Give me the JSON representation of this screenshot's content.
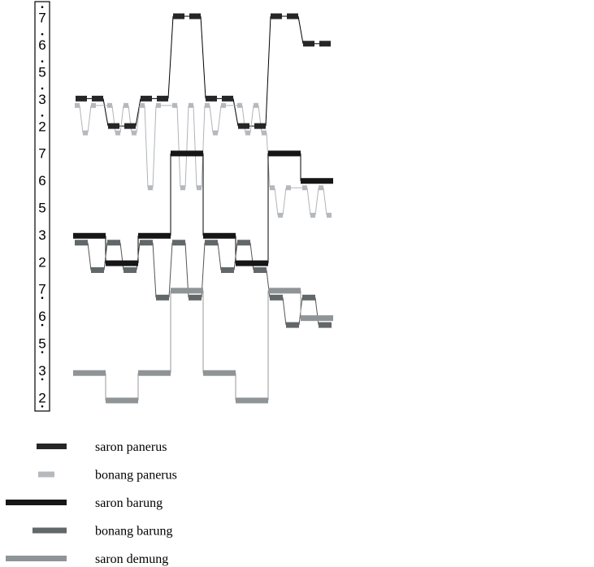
{
  "chart_data": {
    "type": "line",
    "title": "",
    "xlabel": "",
    "ylabel": "",
    "y_ticks": [
      {
        "label": "7",
        "octave": "high"
      },
      {
        "label": "6",
        "octave": "high"
      },
      {
        "label": "5",
        "octave": "high"
      },
      {
        "label": "3",
        "octave": "high"
      },
      {
        "label": "2",
        "octave": "high"
      },
      {
        "label": "7",
        "octave": "mid"
      },
      {
        "label": "6",
        "octave": "mid"
      },
      {
        "label": "5",
        "octave": "mid"
      },
      {
        "label": "3",
        "octave": "mid"
      },
      {
        "label": "2",
        "octave": "mid"
      },
      {
        "label": "7",
        "octave": "low"
      },
      {
        "label": "6",
        "octave": "low"
      },
      {
        "label": "5",
        "octave": "low"
      },
      {
        "label": "3",
        "octave": "low"
      },
      {
        "label": "2",
        "octave": "low"
      }
    ],
    "ylim": [
      0,
      14
    ],
    "xlim": [
      0,
      32
    ],
    "series": [
      {
        "name": "saron panerus",
        "color": "#262626",
        "notes": [
          [
            0,
            1,
            11
          ],
          [
            1,
            2,
            11
          ],
          [
            2,
            3,
            10
          ],
          [
            3,
            4,
            10
          ],
          [
            4,
            5,
            11
          ],
          [
            5,
            6,
            11
          ],
          [
            6,
            7,
            14
          ],
          [
            7,
            8,
            14
          ],
          [
            8,
            9,
            11
          ],
          [
            9,
            10,
            11
          ],
          [
            10,
            11,
            10
          ],
          [
            11,
            12,
            10
          ],
          [
            12,
            13,
            14
          ],
          [
            13,
            14,
            14
          ],
          [
            14,
            15,
            13
          ],
          [
            15,
            16,
            13
          ]
        ]
      },
      {
        "name": "bonang panerus",
        "color": "#b5b9be",
        "notes": [
          [
            0,
            0.5,
            10.75
          ],
          [
            0.5,
            1,
            9.75
          ],
          [
            1,
            1.5,
            10.75
          ],
          [
            2,
            2.5,
            10.75
          ],
          [
            2.5,
            3,
            9.75
          ],
          [
            3,
            3.5,
            10.75
          ],
          [
            3.5,
            4,
            9.75
          ],
          [
            4,
            4.5,
            10.75
          ],
          [
            4.5,
            5,
            7.75
          ],
          [
            5,
            5.5,
            10.75
          ],
          [
            6,
            6.5,
            10.75
          ],
          [
            6.5,
            7,
            7.75
          ],
          [
            7,
            7.5,
            10.75
          ],
          [
            7.5,
            8,
            7.75
          ],
          [
            8,
            8.5,
            10.75
          ],
          [
            8.5,
            9,
            9.75
          ],
          [
            9,
            9.5,
            10.75
          ],
          [
            10,
            10.5,
            10.75
          ],
          [
            10.5,
            11,
            9.75
          ],
          [
            11,
            11.5,
            10.75
          ],
          [
            11.5,
            12,
            9.75
          ],
          [
            12,
            12.5,
            7.75
          ],
          [
            12.5,
            13,
            6.75
          ],
          [
            13,
            13.5,
            7.75
          ],
          [
            14,
            14.5,
            7.75
          ],
          [
            14.5,
            15,
            6.75
          ],
          [
            15,
            15.5,
            7.75
          ],
          [
            15.5,
            16,
            6.75
          ]
        ]
      },
      {
        "name": "saron barung",
        "color": "#161616",
        "notes": [
          [
            0,
            1,
            6
          ],
          [
            1,
            2,
            6
          ],
          [
            2,
            3,
            5
          ],
          [
            3,
            4,
            5
          ],
          [
            4,
            5,
            6
          ],
          [
            5,
            6,
            6
          ],
          [
            6,
            7,
            9
          ],
          [
            7,
            8,
            9
          ],
          [
            8,
            9,
            6
          ],
          [
            9,
            10,
            6
          ],
          [
            10,
            11,
            5
          ],
          [
            11,
            12,
            5
          ],
          [
            12,
            13,
            9
          ],
          [
            13,
            14,
            9
          ],
          [
            14,
            15,
            8
          ],
          [
            15,
            16,
            8
          ]
        ]
      },
      {
        "name": "bonang barung",
        "color": "#626769",
        "notes": [
          [
            0,
            1,
            5.75
          ],
          [
            1,
            2,
            4.75
          ],
          [
            2,
            3,
            5.75
          ],
          [
            3,
            4,
            4.75
          ],
          [
            4,
            5,
            5.75
          ],
          [
            5,
            6,
            3.75
          ],
          [
            6,
            7,
            5.75
          ],
          [
            7,
            8,
            3.75
          ],
          [
            8,
            9,
            5.75
          ],
          [
            9,
            10,
            4.75
          ],
          [
            10,
            11,
            5.75
          ],
          [
            11,
            12,
            4.75
          ],
          [
            12,
            13,
            3.75
          ],
          [
            13,
            14,
            2.75
          ],
          [
            14,
            15,
            3.75
          ],
          [
            15,
            16,
            2.75
          ]
        ]
      },
      {
        "name": "saron demung",
        "color": "#8f9497",
        "notes": [
          [
            0,
            2,
            1
          ],
          [
            2,
            4,
            0
          ],
          [
            4,
            6,
            1
          ],
          [
            6,
            8,
            4
          ],
          [
            8,
            10,
            1
          ],
          [
            10,
            12,
            0
          ],
          [
            12,
            14,
            4
          ],
          [
            14,
            16,
            3
          ]
        ]
      }
    ]
  },
  "legend": {
    "entries": [
      {
        "label": "saron panerus"
      },
      {
        "label": "bonang panerus"
      },
      {
        "label": "saron barung"
      },
      {
        "label": "bonang barung"
      },
      {
        "label": "saron demung"
      }
    ]
  }
}
